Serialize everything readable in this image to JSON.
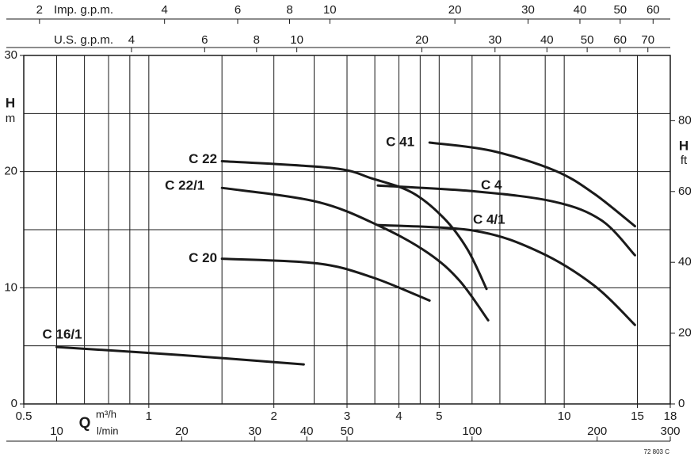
{
  "chart_data": {
    "type": "line",
    "ylabel": "H",
    "yunit": "m",
    "ylim": [
      0,
      30
    ],
    "yticks": [
      0,
      10,
      20,
      30
    ],
    "ygrid": [
      5,
      10,
      15,
      20,
      25
    ],
    "y2label": "H",
    "y2unit": "ft",
    "y2lim": [
      0,
      98.43
    ],
    "y2ticks": [
      0,
      20,
      40,
      60,
      80
    ],
    "xsymbol": "Q",
    "xlabel": "m³/h",
    "log_x": true,
    "xlim": [
      0.5,
      18
    ],
    "xticks": [
      0.5,
      1,
      2,
      3,
      4,
      5,
      10,
      15,
      18
    ],
    "xgrid": [
      0.6,
      0.7,
      0.8,
      0.9,
      1,
      1.5,
      2,
      2.5,
      3,
      3.5,
      4,
      4.5,
      5,
      6,
      7,
      9,
      10,
      15
    ],
    "secondary_x_axes": [
      {
        "label": "Imp. g.p.m.",
        "lim": [
          1.833,
          66
        ],
        "ticks": [
          2,
          4,
          6,
          8,
          10,
          20,
          30,
          40,
          50,
          60
        ]
      },
      {
        "label": "U.S. g.p.m.",
        "lim": [
          2.2015,
          79.25
        ],
        "ticks": [
          4,
          6,
          8,
          10,
          20,
          30,
          40,
          50,
          60,
          70
        ]
      },
      {
        "label": "l/min",
        "lim": [
          8.333,
          300
        ],
        "ticks": [
          10,
          20,
          30,
          40,
          50,
          100,
          200,
          300
        ]
      }
    ],
    "series": [
      {
        "name": "C 16/1",
        "color": "#1a1a1a",
        "x": [
          0.6,
          1.2,
          2.36
        ],
        "values": [
          4.9,
          4.2,
          3.4
        ]
      },
      {
        "name": "C 22",
        "color": "#1a1a1a",
        "x": [
          1.5,
          2.77,
          3.45,
          4.3,
          5.13,
          5.85,
          6.5
        ],
        "values": [
          20.9,
          20.3,
          19.4,
          18.2,
          16,
          13.3,
          9.9
        ]
      },
      {
        "name": "C 22/1",
        "color": "#1a1a1a",
        "x": [
          1.5,
          2.54,
          3.6,
          4.7,
          5.6,
          6.56
        ],
        "values": [
          18.6,
          17.4,
          15.3,
          13.0,
          10.6,
          7.2
        ]
      },
      {
        "name": "C 20",
        "color": "#1a1a1a",
        "x": [
          1.5,
          2.54,
          3.45,
          4.74
        ],
        "values": [
          12.5,
          12.1,
          10.9,
          8.9
        ]
      },
      {
        "name": "C 41",
        "color": "#1a1a1a",
        "x": [
          4.74,
          6.67,
          9.48,
          11.8,
          14.8
        ],
        "values": [
          22.5,
          21.8,
          20.1,
          18.1,
          15.3
        ]
      },
      {
        "name": "C 4",
        "color": "#1a1a1a",
        "x": [
          3.56,
          6.1,
          9.48,
          12.3,
          14.8
        ],
        "values": [
          18.8,
          18.3,
          17.4,
          15.8,
          12.8
        ]
      },
      {
        "name": "C 4/1",
        "color": "#1a1a1a",
        "x": [
          3.56,
          6.1,
          8.69,
          11.8,
          14.8
        ],
        "values": [
          15.4,
          14.9,
          13.1,
          10.2,
          6.8
        ]
      }
    ],
    "code": "72 803 C"
  }
}
